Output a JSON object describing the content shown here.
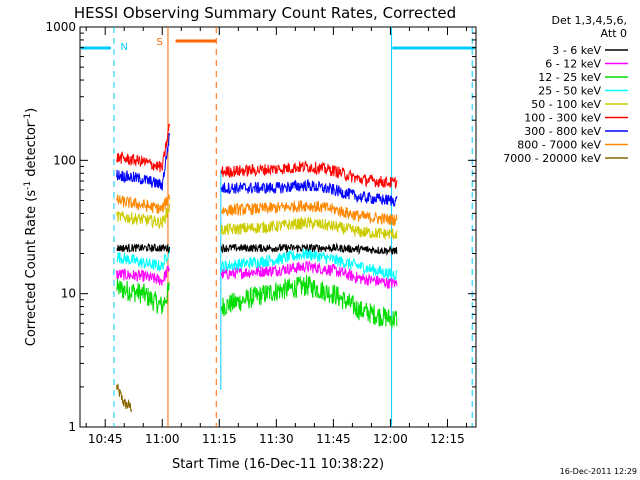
{
  "chart_data": {
    "type": "line",
    "title": "HESSI Observing Summary Count Rates, Corrected",
    "xlabel": "Start Time (16-Dec-11 10:38:22)",
    "ylabel_main": "Corrected Count Rate (s",
    "ylabel_sup1": "-1",
    "ylabel_mid": " detector",
    "ylabel_sup2": "-1",
    "ylabel_end": ")",
    "y_scale": "log",
    "ylim": [
      1,
      1000
    ],
    "xlim_minutes": [
      38.37,
      142.5
    ],
    "x_ticks": [
      {
        "label": "10:45",
        "minutes": 45
      },
      {
        "label": "11:00",
        "minutes": 60
      },
      {
        "label": "11:15",
        "minutes": 75
      },
      {
        "label": "11:30",
        "minutes": 90
      },
      {
        "label": "11:45",
        "minutes": 105
      },
      {
        "label": "12:00",
        "minutes": 120
      },
      {
        "label": "12:15",
        "minutes": 135
      }
    ],
    "y_ticks": [
      {
        "label": "1",
        "value": 1
      },
      {
        "label": "10",
        "value": 10
      },
      {
        "label": "100",
        "value": 100
      },
      {
        "label": "1000",
        "value": 1000
      }
    ],
    "legend_header": [
      "Det 1,3,4,5,6,",
      "Att 0"
    ],
    "series": [
      {
        "name": "3 - 6 keV",
        "color": "#000000",
        "points": [
          [
            48.0,
            22
          ],
          [
            55,
            22
          ],
          [
            60,
            22
          ],
          [
            62.0,
            22
          ],
          [
            75.5,
            22
          ],
          [
            90,
            22
          ],
          [
            105,
            22
          ],
          [
            120,
            21
          ],
          [
            121.8,
            21
          ]
        ]
      },
      {
        "name": "6 - 12 keV",
        "color": "#ff00ff",
        "points": [
          [
            48.0,
            14
          ],
          [
            55,
            13.5
          ],
          [
            60,
            12.5
          ],
          [
            62.0,
            16
          ],
          [
            75.5,
            14
          ],
          [
            90,
            15
          ],
          [
            98,
            16
          ],
          [
            105,
            15
          ],
          [
            112,
            13
          ],
          [
            120,
            12
          ],
          [
            121.8,
            12
          ]
        ]
      },
      {
        "name": "12 - 25 keV",
        "color": "#00dd00",
        "points": [
          [
            48.0,
            11
          ],
          [
            55,
            10
          ],
          [
            60,
            8
          ],
          [
            62.0,
            11
          ],
          [
            75.5,
            8
          ],
          [
            90,
            10.5
          ],
          [
            98,
            11.5
          ],
          [
            105,
            10
          ],
          [
            112,
            7.5
          ],
          [
            120,
            6.5
          ],
          [
            121.8,
            6.5
          ]
        ]
      },
      {
        "name": "25 - 50 keV",
        "color": "#00ffff",
        "points": [
          [
            48.0,
            19
          ],
          [
            55,
            17
          ],
          [
            60,
            16
          ],
          [
            62.0,
            22
          ],
          [
            75.5,
            16
          ],
          [
            90,
            18
          ],
          [
            98,
            20
          ],
          [
            105,
            18
          ],
          [
            112,
            16
          ],
          [
            120,
            14
          ],
          [
            121.8,
            14
          ]
        ]
      },
      {
        "name": "50 - 100 keV",
        "color": "#cccc00",
        "points": [
          [
            48.0,
            38
          ],
          [
            55,
            36
          ],
          [
            60,
            34
          ],
          [
            62.0,
            45
          ],
          [
            75.5,
            30
          ],
          [
            90,
            32
          ],
          [
            98,
            34
          ],
          [
            105,
            32
          ],
          [
            112,
            29
          ],
          [
            120,
            28
          ],
          [
            121.8,
            28
          ]
        ]
      },
      {
        "name": "100 - 300 keV",
        "color": "#ff0000",
        "points": [
          [
            48.0,
            105
          ],
          [
            55,
            98
          ],
          [
            60,
            88
          ],
          [
            62.0,
            190
          ],
          [
            75.5,
            82
          ],
          [
            90,
            86
          ],
          [
            98,
            90
          ],
          [
            105,
            84
          ],
          [
            112,
            72
          ],
          [
            120,
            68
          ],
          [
            121.8,
            68
          ]
        ]
      },
      {
        "name": "300 - 800 keV",
        "color": "#0000ff",
        "points": [
          [
            48.0,
            78
          ],
          [
            55,
            72
          ],
          [
            60,
            65
          ],
          [
            62.0,
            160
          ],
          [
            75.5,
            62
          ],
          [
            90,
            62
          ],
          [
            98,
            65
          ],
          [
            105,
            60
          ],
          [
            112,
            53
          ],
          [
            120,
            50
          ],
          [
            121.8,
            50
          ]
        ]
      },
      {
        "name": "800 - 7000 keV",
        "color": "#ff8800",
        "points": [
          [
            48.0,
            50
          ],
          [
            55,
            46
          ],
          [
            60,
            43
          ],
          [
            62.0,
            55
          ],
          [
            75.5,
            42
          ],
          [
            90,
            44
          ],
          [
            98,
            46
          ],
          [
            105,
            43
          ],
          [
            112,
            38
          ],
          [
            120,
            36
          ],
          [
            121.8,
            36
          ]
        ]
      },
      {
        "name": "7000 - 20000 keV",
        "color": "#886600",
        "points": [
          [
            48.0,
            2
          ],
          [
            50,
            1.5
          ],
          [
            52,
            1.4
          ]
        ]
      }
    ],
    "annotations": {
      "n_label": "N",
      "s_label": "S",
      "n_color": "#00ccff",
      "s_color": "#ff6600"
    },
    "grid": false,
    "legend_position": "outside-right"
  },
  "footer": {
    "timestamp": "16-Dec-2011 12:29"
  }
}
